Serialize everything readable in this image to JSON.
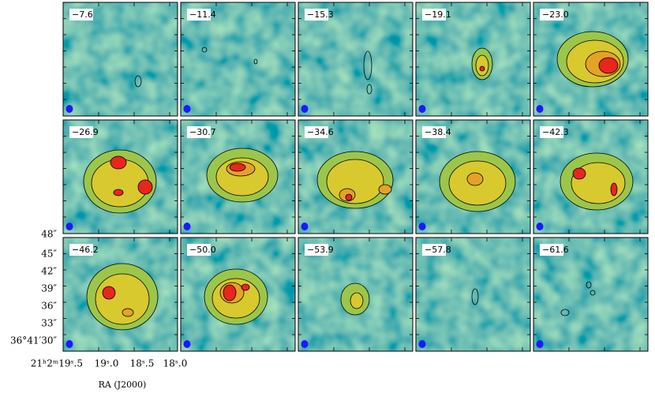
{
  "panels": [
    {
      "label": "−7.6"
    },
    {
      "label": "−11.4"
    },
    {
      "label": "−15.3"
    },
    {
      "label": "−19.1"
    },
    {
      "label": "−23.0"
    },
    {
      "label": "−26.9"
    },
    {
      "label": "−30.7"
    },
    {
      "label": "−34.6"
    },
    {
      "label": "−38.4"
    },
    {
      "label": "−42.3"
    },
    {
      "label": "−46.2"
    },
    {
      "label": "−50.0"
    },
    {
      "label": "−53.9"
    },
    {
      "label": "−57.8"
    },
    {
      "label": "−61.6"
    }
  ],
  "y_tick_labels": [
    "48″",
    "45″",
    "42″",
    "39″",
    "36″",
    "33″",
    "36°41′30″"
  ],
  "x_tick_labels": [
    "21ʰ2ᵐ19ˢ.5",
    "19ˢ.0",
    "18ˢ.5",
    "18ˢ.0"
  ],
  "x_axis_label": "RA (J2000)"
}
